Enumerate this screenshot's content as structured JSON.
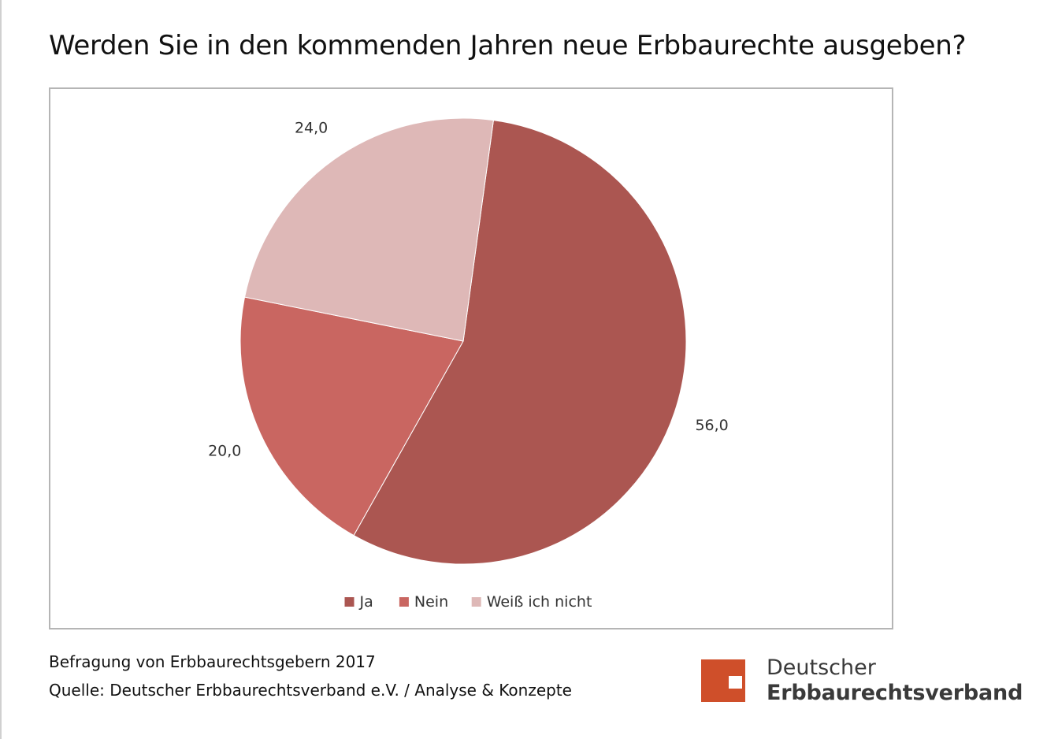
{
  "title": "Werden Sie in den kommenden Jahren neue Erbbaurechte ausgeben?",
  "chart_data": {
    "type": "pie",
    "categories": [
      "Ja",
      "Nein",
      "Weiß ich nicht"
    ],
    "values": [
      56.0,
      20.0,
      24.0
    ],
    "data_labels": [
      "56,0",
      "20,0",
      "24,0"
    ],
    "colors": [
      "#ab5651",
      "#c96661",
      "#deb8b7"
    ],
    "legend_position": "bottom"
  },
  "footer": {
    "survey": "Befragung von Erbbaurechtsgebern 2017",
    "source": "Quelle: Deutscher Erbbaurechtsverband e.V. / Analyse & Konzepte"
  },
  "logo": {
    "line1": "Deutscher",
    "line2": "Erbbaurechtsverband",
    "color": "#cf4f2a"
  }
}
